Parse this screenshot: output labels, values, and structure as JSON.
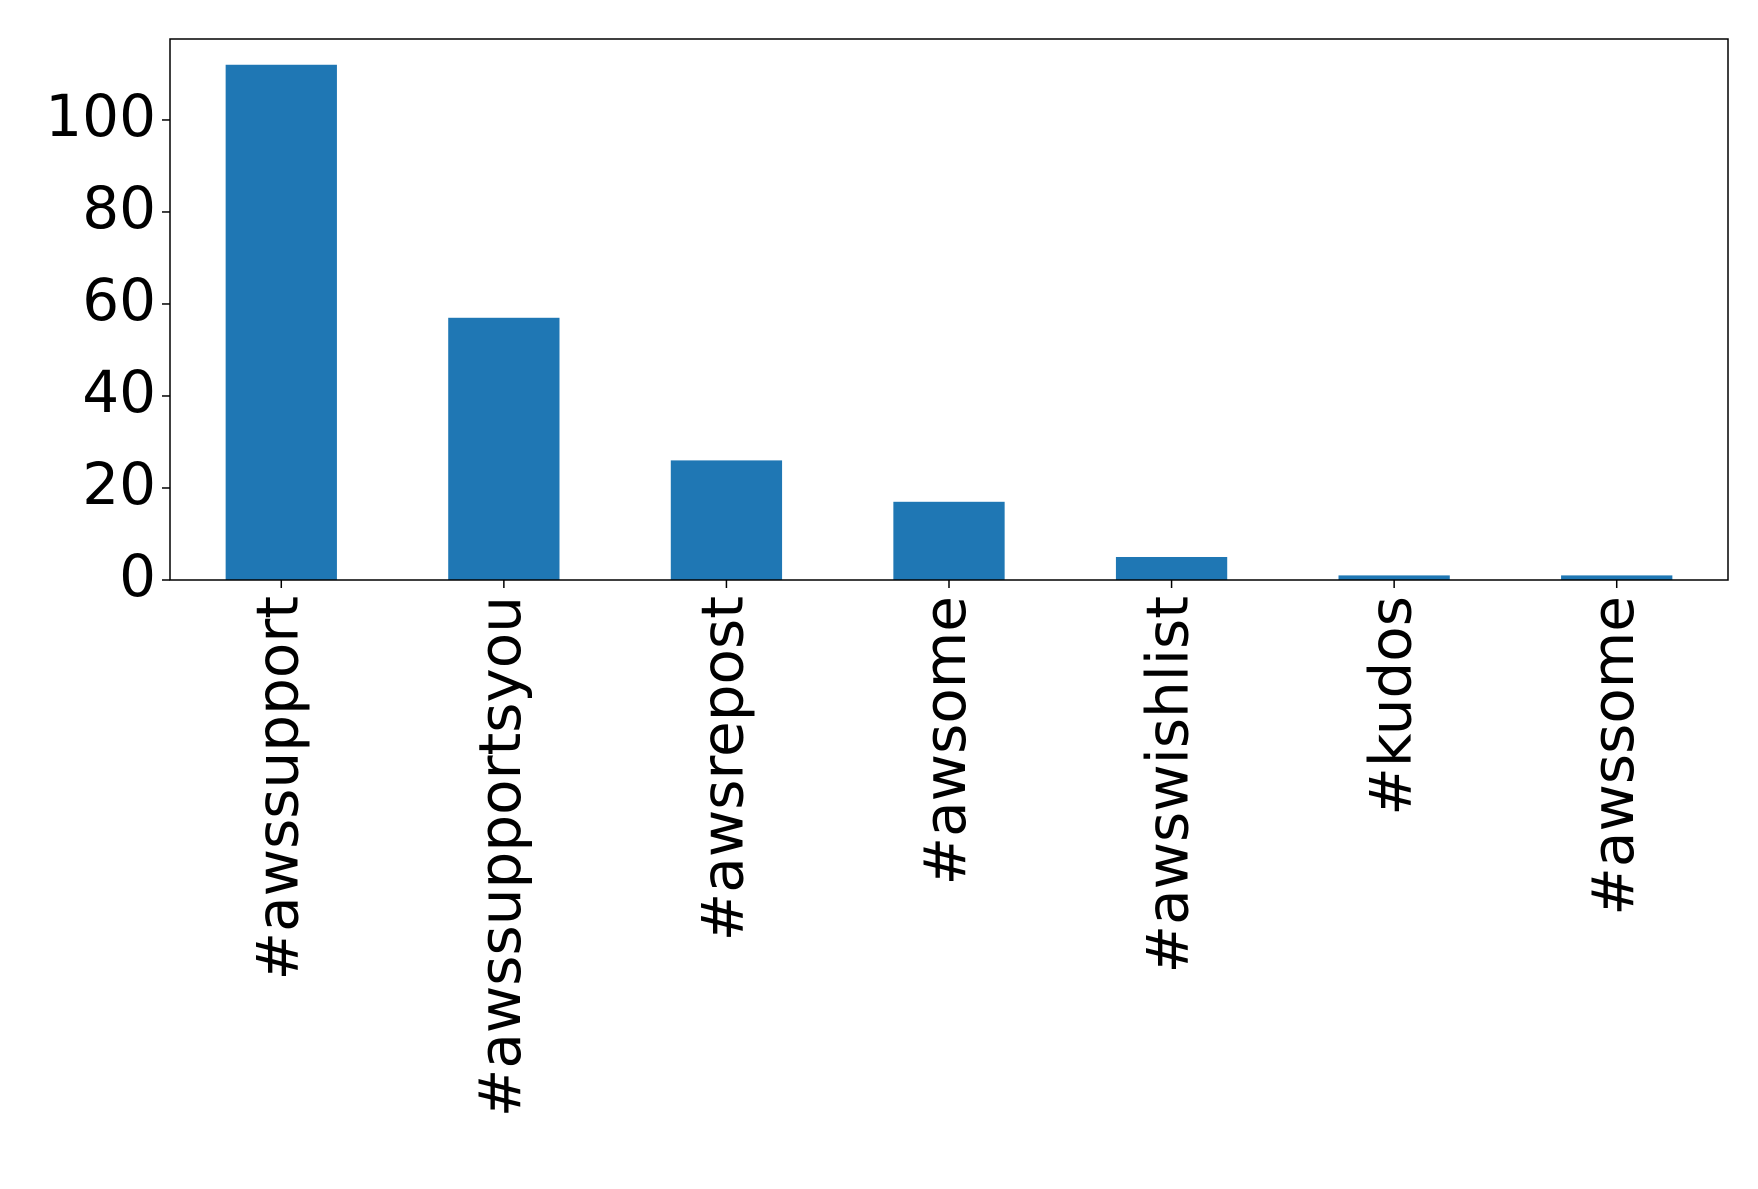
{
  "chart_data": {
    "type": "bar",
    "categories": [
      "#awssupport",
      "#awssupportsyou",
      "#awsrepost",
      "#awsome",
      "#awswishlist",
      "#kudos",
      "#awssome"
    ],
    "values": [
      112,
      57,
      26,
      17,
      5,
      1,
      1
    ],
    "color": "#1f77b4",
    "ylim": [
      0,
      117.6
    ],
    "yticks": [
      0,
      20,
      40,
      60,
      80,
      100
    ],
    "grid": false
  }
}
